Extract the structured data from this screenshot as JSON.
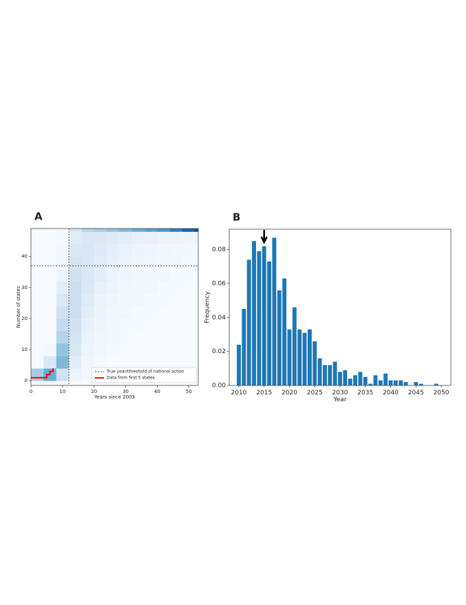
{
  "chart_data": [
    {
      "type": "heatmap",
      "panel_label": "A",
      "x_label": "Years since 2003",
      "y_label": "Number of states",
      "xlim": [
        0,
        53
      ],
      "ylim": [
        -1.5,
        49
      ],
      "xticks": [
        0,
        10,
        20,
        30,
        40,
        50
      ],
      "yticks": [
        0,
        10,
        20,
        30,
        40
      ],
      "cmap": "Blues",
      "xbins": [
        0,
        4,
        8,
        12,
        16,
        20,
        24,
        28,
        32,
        36,
        40,
        44,
        48,
        52,
        53
      ],
      "ybins": [
        0,
        4,
        8,
        12,
        16,
        20,
        24,
        28,
        32,
        36,
        40,
        44,
        48,
        49
      ],
      "z": [
        [
          0.35,
          0.5,
          0.2,
          0.05,
          0.02,
          0,
          0,
          0,
          0,
          0,
          0,
          0,
          0,
          0
        ],
        [
          0,
          0.15,
          0.45,
          0.1,
          0.03,
          0.01,
          0,
          0,
          0,
          0,
          0,
          0,
          0,
          0
        ],
        [
          0,
          0.02,
          0.4,
          0.15,
          0.05,
          0.02,
          0.01,
          0,
          0,
          0,
          0,
          0,
          0,
          0
        ],
        [
          0,
          0,
          0.3,
          0.18,
          0.06,
          0.03,
          0.02,
          0.01,
          0,
          0,
          0,
          0,
          0,
          0
        ],
        [
          0,
          0,
          0.25,
          0.2,
          0.08,
          0.04,
          0.02,
          0.01,
          0.01,
          0,
          0,
          0,
          0,
          0
        ],
        [
          0,
          0,
          0.2,
          0.22,
          0.1,
          0.05,
          0.03,
          0.02,
          0.01,
          0.01,
          0,
          0,
          0,
          0
        ],
        [
          0,
          0,
          0.15,
          0.22,
          0.12,
          0.06,
          0.04,
          0.02,
          0.02,
          0.01,
          0.01,
          0,
          0,
          0
        ],
        [
          0,
          0,
          0.1,
          0.22,
          0.14,
          0.08,
          0.05,
          0.03,
          0.02,
          0.02,
          0.01,
          0.01,
          0,
          0
        ],
        [
          0,
          0,
          0.06,
          0.2,
          0.15,
          0.1,
          0.06,
          0.04,
          0.03,
          0.02,
          0.02,
          0.01,
          0.01,
          0
        ],
        [
          0,
          0,
          0.03,
          0.18,
          0.16,
          0.11,
          0.08,
          0.05,
          0.04,
          0.03,
          0.02,
          0.02,
          0.01,
          0.01
        ],
        [
          0,
          0,
          0.02,
          0.15,
          0.16,
          0.13,
          0.1,
          0.07,
          0.05,
          0.04,
          0.03,
          0.02,
          0.02,
          0.01
        ],
        [
          0,
          0,
          0.01,
          0.12,
          0.15,
          0.14,
          0.12,
          0.1,
          0.08,
          0.07,
          0.06,
          0.05,
          0.04,
          0.04
        ],
        [
          0,
          0,
          0,
          0.15,
          0.3,
          0.35,
          0.4,
          0.45,
          0.5,
          0.55,
          0.6,
          0.7,
          0.8,
          0.9
        ]
      ],
      "vline": 12,
      "hline": 37,
      "ref_name": "True year/threshold of national action",
      "series": [
        {
          "name": "Data from first 5 states",
          "color": "#ff0000",
          "x": [
            0,
            5,
            5,
            6,
            6,
            7,
            7
          ],
          "values": [
            1,
            1,
            2,
            2,
            3,
            3,
            4
          ]
        }
      ],
      "legend": "lower right"
    },
    {
      "type": "bar",
      "panel_label": "B",
      "x_label": "Year",
      "y_label": "Frequency",
      "xlim": [
        2008.1,
        2051.9
      ],
      "ylim": [
        0,
        0.092
      ],
      "xticks": [
        2010,
        2015,
        2020,
        2025,
        2030,
        2035,
        2040,
        2045,
        2050
      ],
      "yticks": [
        {
          "value": 0,
          "label": "0.00"
        },
        {
          "value": 0.02,
          "label": "0.02"
        },
        {
          "value": 0.04,
          "label": "0.04"
        },
        {
          "value": 0.06,
          "label": "0.06"
        },
        {
          "value": 0.08,
          "label": "0.08"
        }
      ],
      "color": "#1f77b4",
      "arrow_x": 2015,
      "x": [
        2010,
        2011,
        2012,
        2013,
        2014,
        2015,
        2016,
        2017,
        2018,
        2019,
        2020,
        2021,
        2022,
        2023,
        2024,
        2025,
        2026,
        2027,
        2028,
        2029,
        2030,
        2031,
        2032,
        2033,
        2034,
        2035,
        2036,
        2037,
        2038,
        2039,
        2040,
        2041,
        2042,
        2043,
        2044,
        2045,
        2046,
        2047,
        2048,
        2049
      ],
      "values": [
        0.024,
        0.045,
        0.074,
        0.085,
        0.079,
        0.082,
        0.073,
        0.087,
        0.056,
        0.063,
        0.033,
        0.046,
        0.033,
        0.031,
        0.033,
        0.026,
        0.016,
        0.012,
        0.012,
        0.014,
        0.008,
        0.009,
        0.004,
        0.006,
        0.008,
        0.005,
        0.001,
        0.006,
        0.003,
        0.007,
        0.003,
        0.003,
        0.003,
        0.002,
        0,
        0.002,
        0.001,
        0,
        0,
        0.001
      ]
    }
  ]
}
